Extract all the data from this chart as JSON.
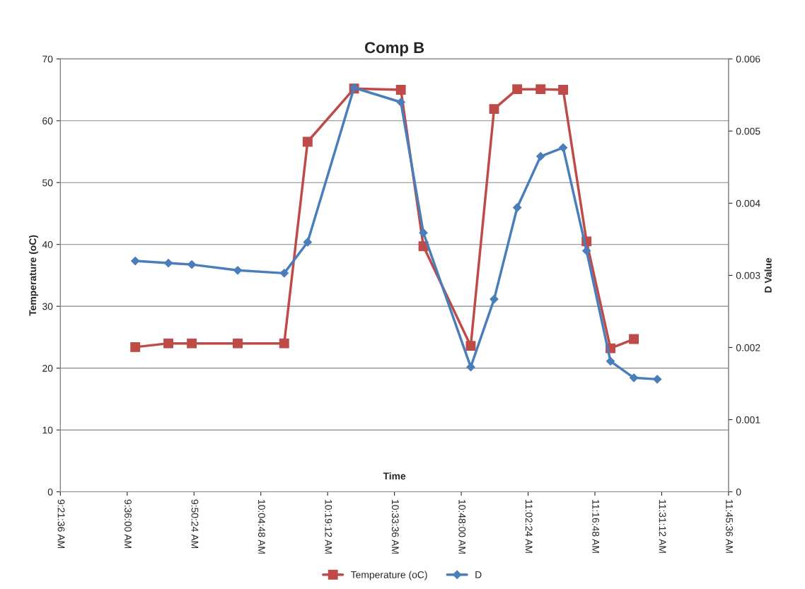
{
  "chart_data": {
    "type": "line",
    "title": "Comp B",
    "xlabel": "Time",
    "ylabel": "Temperature (oC)",
    "y2label": "D Value",
    "xlim": [
      9.36,
      11.76
    ],
    "xticks": [
      {
        "value": 9.36,
        "label": "9:21:36 AM"
      },
      {
        "value": 9.6,
        "label": "9:36:00 AM"
      },
      {
        "value": 9.84,
        "label": "9:50:24 AM"
      },
      {
        "value": 10.08,
        "label": "10:04:48 AM"
      },
      {
        "value": 10.32,
        "label": "10:19:12 AM"
      },
      {
        "value": 10.56,
        "label": "10:33:36 AM"
      },
      {
        "value": 10.8,
        "label": "10:48:00 AM"
      },
      {
        "value": 11.04,
        "label": "11:02:24 AM"
      },
      {
        "value": 11.28,
        "label": "11:16:48 AM"
      },
      {
        "value": 11.52,
        "label": "11:31:12 AM"
      },
      {
        "value": 11.76,
        "label": "11:45:36 AM"
      }
    ],
    "ylim": [
      0,
      70
    ],
    "yticks": [
      0,
      10,
      20,
      30,
      40,
      50,
      60,
      70
    ],
    "y2lim": [
      0,
      0.006
    ],
    "y2ticks": [
      0,
      0.001,
      0.002,
      0.003,
      0.004,
      0.005,
      0.006
    ],
    "grid": "y",
    "legend": "bottom",
    "series": [
      {
        "name": "Temperature (oC)",
        "color": "#be4b48",
        "marker": "square",
        "x": [
          9.629,
          9.748,
          9.832,
          9.997,
          10.164,
          10.248,
          10.415,
          10.583,
          10.664,
          10.834,
          10.918,
          11.001,
          11.085,
          11.166,
          11.25,
          11.336,
          11.42
        ],
        "values": [
          23.4,
          24,
          24,
          24,
          24,
          56.6,
          65.2,
          65.0,
          39.7,
          23.6,
          61.9,
          65.1,
          65.1,
          65.0,
          40.5,
          23.2,
          24.7
        ]
      },
      {
        "name": "D",
        "color": "#4a7ebb",
        "marker": "diamond",
        "axis": "y2",
        "x": [
          9.629,
          9.748,
          9.832,
          9.997,
          10.164,
          10.248,
          10.415,
          10.583,
          10.664,
          10.834,
          10.918,
          11.001,
          11.085,
          11.166,
          11.25,
          11.336,
          11.42,
          11.504
        ],
        "values": [
          0.0032,
          0.00317,
          0.00315,
          0.00307,
          0.00303,
          0.00346,
          0.0056,
          0.0054,
          0.00359,
          0.00173,
          0.00267,
          0.00394,
          0.00465,
          0.00477,
          0.00334,
          0.00181,
          0.00158,
          0.00156
        ]
      }
    ]
  }
}
